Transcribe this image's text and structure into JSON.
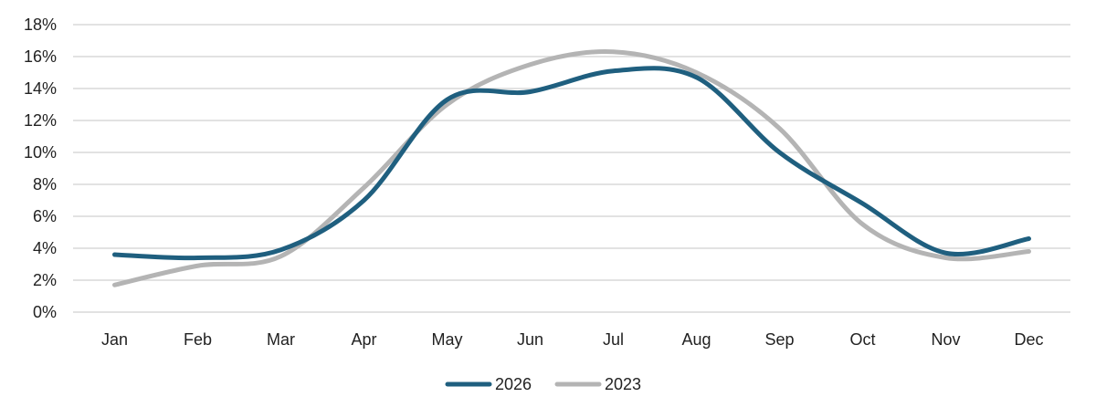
{
  "chart_data": {
    "type": "line",
    "title": "",
    "xlabel": "",
    "ylabel": "",
    "categories": [
      "Jan",
      "Feb",
      "Mar",
      "Apr",
      "May",
      "Jun",
      "Jul",
      "Aug",
      "Sep",
      "Oct",
      "Nov",
      "Dec"
    ],
    "y_ticks": [
      "0%",
      "2%",
      "4%",
      "6%",
      "8%",
      "10%",
      "12%",
      "14%",
      "16%",
      "18%"
    ],
    "ylim": [
      0,
      18
    ],
    "y_unit": "%",
    "grid": true,
    "legend_position": "bottom",
    "smooth": true,
    "series": [
      {
        "name": "2026",
        "color": "#1f5f7f",
        "values": [
          3.6,
          3.4,
          3.9,
          7.0,
          13.3,
          13.8,
          15.1,
          14.7,
          10.0,
          6.8,
          3.7,
          4.6
        ]
      },
      {
        "name": "2023",
        "color": "#b4b4b4",
        "values": [
          1.7,
          2.9,
          3.5,
          7.8,
          13.0,
          15.5,
          16.3,
          15.0,
          11.5,
          5.5,
          3.4,
          3.8
        ]
      }
    ]
  }
}
